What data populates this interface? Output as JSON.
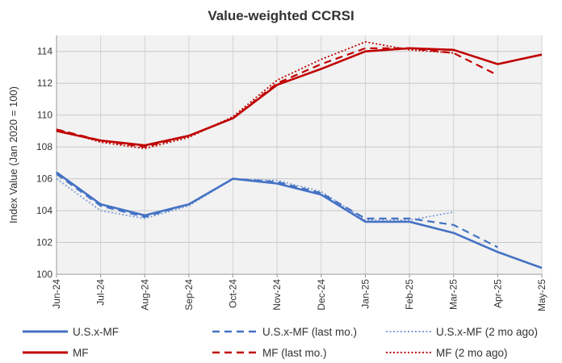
{
  "chart_data": {
    "type": "line",
    "title": "Value-weighted  CCRSI",
    "xlabel": "",
    "ylabel": "Index Value (Jan 2020 = 100)",
    "categories": [
      "Jun-24",
      "Jul-24",
      "Aug-24",
      "Sep-24",
      "Oct-24",
      "Nov-24",
      "Dec-24",
      "Jan-25",
      "Feb-25",
      "Mar-25",
      "Apr-25",
      "May-25"
    ],
    "ylim": [
      100,
      115
    ],
    "yticks": [
      100,
      102,
      104,
      106,
      108,
      110,
      112,
      114
    ],
    "grid": true,
    "legend_position": "bottom",
    "series": [
      {
        "name": "U.S.x-MF",
        "color": "#4472C4",
        "style": "solid",
        "values": [
          106.4,
          104.4,
          103.7,
          104.4,
          106.0,
          105.7,
          105.0,
          103.3,
          103.3,
          102.6,
          101.4,
          100.4
        ]
      },
      {
        "name": "U.S.x-MF (last mo.)",
        "color": "#4472C4",
        "style": "dashed",
        "values": [
          106.3,
          104.3,
          103.6,
          104.4,
          106.0,
          105.8,
          105.1,
          103.5,
          103.5,
          103.1,
          101.7,
          null
        ]
      },
      {
        "name": "U.S.x-MF (2 mo ago)",
        "color": "#7F9FD5",
        "style": "dotted",
        "values": [
          106.0,
          104.0,
          103.5,
          104.3,
          106.0,
          105.9,
          105.2,
          103.4,
          103.4,
          103.9,
          null,
          null
        ]
      },
      {
        "name": "MF",
        "color": "#C00000",
        "style": "solid",
        "values": [
          109.0,
          108.4,
          108.1,
          108.7,
          109.8,
          111.9,
          112.9,
          114.0,
          114.2,
          114.1,
          113.2,
          113.8
        ]
      },
      {
        "name": "MF (last mo.)",
        "color": "#C00000",
        "style": "dashed",
        "values": [
          109.1,
          108.4,
          108.0,
          108.7,
          109.8,
          112.0,
          113.2,
          114.2,
          114.2,
          113.9,
          112.5,
          null
        ]
      },
      {
        "name": "MF (2 mo ago)",
        "color": "#C00000",
        "style": "dotted",
        "values": [
          109.1,
          108.3,
          107.9,
          108.6,
          109.9,
          112.2,
          113.5,
          114.6,
          114.1,
          113.9,
          null,
          null
        ]
      }
    ]
  }
}
